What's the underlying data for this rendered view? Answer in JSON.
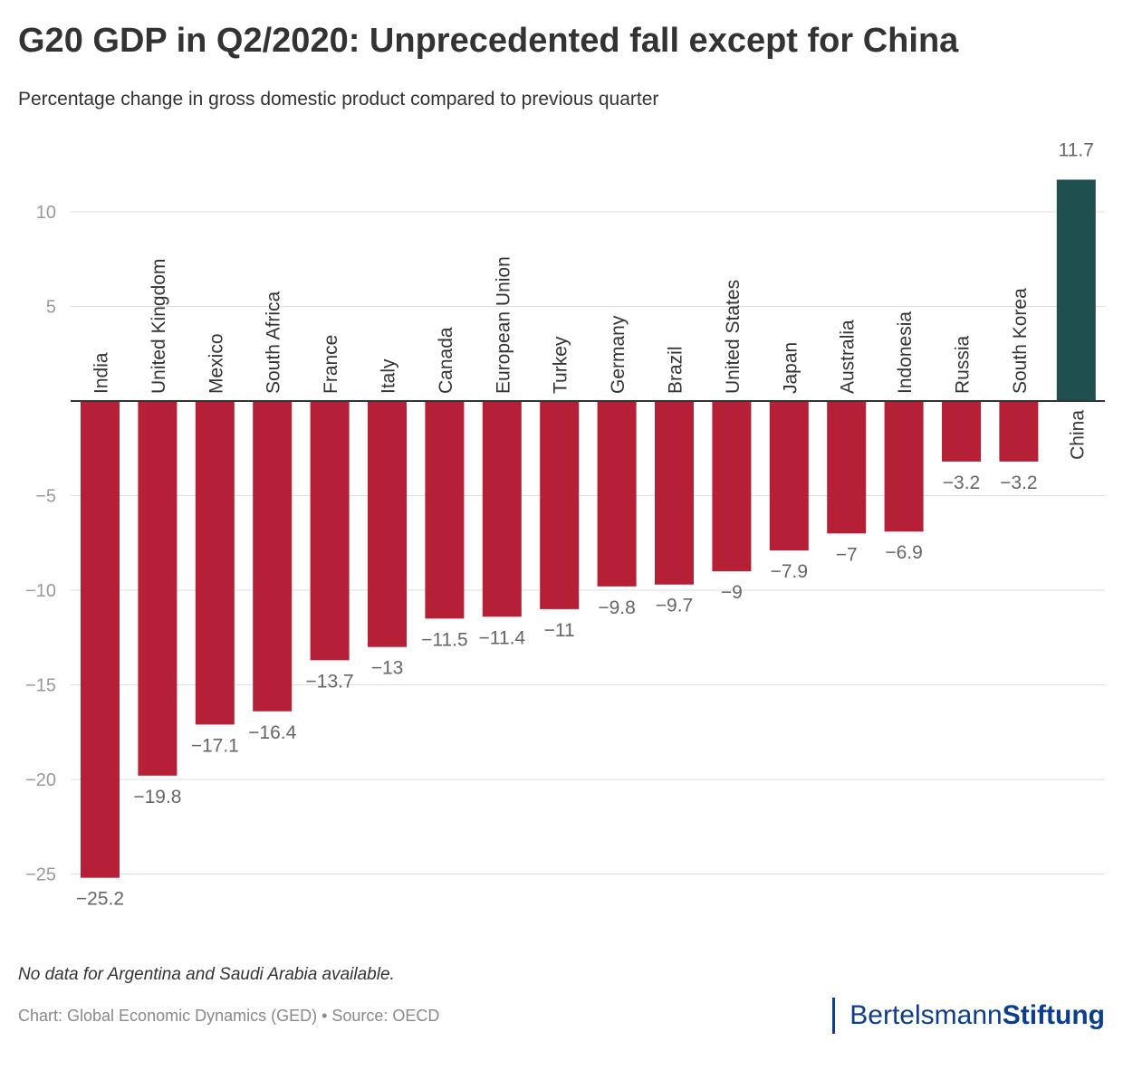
{
  "title": "G20 GDP in Q2/2020: Unprecedented fall except for China",
  "subtitle": "Percentage change in gross domestic product compared to previous quarter",
  "note": "No data for Argentina and Saudi Arabia available.",
  "source": "Chart: Global Economic Dynamics (GED) • Source: OECD",
  "logo": {
    "part1": "Bertelsmann",
    "part2": "Stiftung"
  },
  "colors": {
    "negative": "#b52036",
    "positive": "#1f4f4f",
    "logo": "#0b3d91"
  },
  "chart_data": {
    "type": "bar",
    "categories": [
      "India",
      "United Kingdom",
      "Mexico",
      "South Africa",
      "France",
      "Italy",
      "Canada",
      "European Union",
      "Turkey",
      "Germany",
      "Brazil",
      "United States",
      "Japan",
      "Australia",
      "Indonesia",
      "Russia",
      "South Korea",
      "China"
    ],
    "values": [
      -25.2,
      -19.8,
      -17.1,
      -16.4,
      -13.7,
      -13,
      -11.5,
      -11.4,
      -11,
      -9.8,
      -9.7,
      -9,
      -7.9,
      -7,
      -6.9,
      -3.2,
      -3.2,
      11.7
    ],
    "value_labels": [
      "−25.2",
      "−19.8",
      "−17.1",
      "−16.4",
      "−13.7",
      "−13",
      "−11.5",
      "−11.4",
      "−11",
      "−9.8",
      "−9.7",
      "−9",
      "−7.9",
      "−7",
      "−6.9",
      "−3.2",
      "−3.2",
      "11.7"
    ],
    "yticks": [
      10,
      5,
      -5,
      -10,
      -15,
      -20,
      -25
    ],
    "ytick_labels": [
      "10",
      "5",
      "−5",
      "−10",
      "−15",
      "−20",
      "−25"
    ],
    "ylim": [
      -25.2,
      11.7
    ],
    "grid": true
  }
}
